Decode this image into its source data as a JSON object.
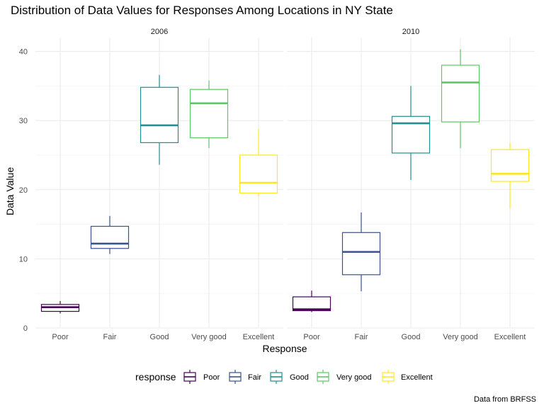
{
  "chart_data": {
    "type": "boxplot",
    "title": "Distribution of Data Values for Responses Among Locations in NY State",
    "xlabel": "Response",
    "ylabel": "Data Value",
    "caption": "Data from BRFSS",
    "categories": [
      "Poor",
      "Fair",
      "Good",
      "Very good",
      "Excellent"
    ],
    "ylim": [
      0,
      42
    ],
    "y_ticks": [
      0,
      10,
      20,
      30,
      40
    ],
    "grid": true,
    "legend": {
      "title": "response",
      "placement": "bottom",
      "entries": [
        "Poor",
        "Fair",
        "Good",
        "Very good",
        "Excellent"
      ]
    },
    "colors": {
      "Poor": "#440154",
      "Fair": "#3B528B",
      "Good": "#21908C",
      "Very good": "#5DC863",
      "Excellent": "#FDE725"
    },
    "panels": [
      {
        "label": "2006",
        "boxes": [
          {
            "category": "Poor",
            "min": 2.1,
            "q1": 2.4,
            "median": 3.0,
            "q3": 3.4,
            "max": 3.9
          },
          {
            "category": "Fair",
            "min": 10.7,
            "q1": 11.5,
            "median": 12.2,
            "q3": 14.7,
            "max": 16.2
          },
          {
            "category": "Good",
            "min": 23.6,
            "q1": 26.8,
            "median": 29.3,
            "q3": 34.8,
            "max": 36.6
          },
          {
            "category": "Very good",
            "min": 26.0,
            "q1": 27.5,
            "median": 32.5,
            "q3": 34.5,
            "max": 35.8
          },
          {
            "category": "Excellent",
            "min": 19.0,
            "q1": 19.5,
            "median": 21.0,
            "q3": 25.0,
            "max": 28.8
          }
        ]
      },
      {
        "label": "2010",
        "boxes": [
          {
            "category": "Poor",
            "min": 2.3,
            "q1": 2.5,
            "median": 2.7,
            "q3": 4.5,
            "max": 5.4
          },
          {
            "category": "Fair",
            "min": 5.3,
            "q1": 7.7,
            "median": 11.0,
            "q3": 13.8,
            "max": 16.7
          },
          {
            "category": "Good",
            "min": 21.4,
            "q1": 25.3,
            "median": 29.6,
            "q3": 30.6,
            "max": 35.0
          },
          {
            "category": "Very good",
            "min": 26.0,
            "q1": 29.8,
            "median": 35.5,
            "q3": 38.0,
            "max": 40.3
          },
          {
            "category": "Excellent",
            "min": 17.3,
            "q1": 21.2,
            "median": 22.3,
            "q3": 25.8,
            "max": 26.8
          }
        ]
      }
    ]
  }
}
